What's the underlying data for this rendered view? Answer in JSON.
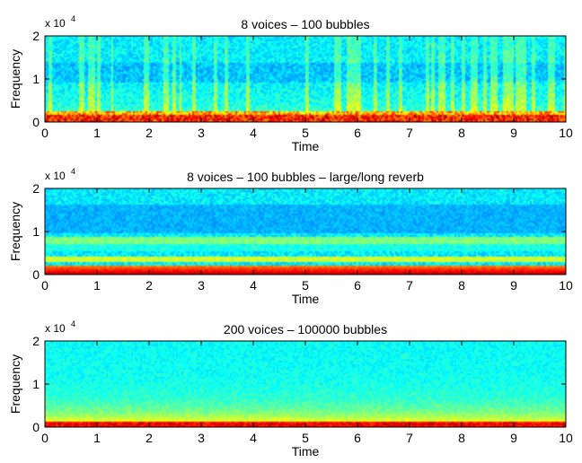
{
  "chart_data": [
    {
      "type": "heatmap",
      "title": "8 voices – 100 bubbles",
      "xlabel": "Time",
      "ylabel": "Frequency",
      "xlim": [
        0,
        10
      ],
      "ylim": [
        0,
        20000
      ],
      "xticks": [
        "0",
        "1",
        "2",
        "3",
        "4",
        "5",
        "6",
        "7",
        "8",
        "9",
        "10"
      ],
      "yticks": [
        "0",
        "1",
        "2"
      ],
      "y_exponent": {
        "base": "x 10",
        "power": "4"
      },
      "colormap": "jet",
      "texture": "transient"
    },
    {
      "type": "heatmap",
      "title": "8 voices – 100 bubbles – large/long reverb",
      "xlabel": "Time",
      "ylabel": "Frequency",
      "xlim": [
        0,
        10
      ],
      "ylim": [
        0,
        20000
      ],
      "xticks": [
        "0",
        "1",
        "2",
        "3",
        "4",
        "5",
        "6",
        "7",
        "8",
        "9",
        "10"
      ],
      "yticks": [
        "0",
        "1",
        "2"
      ],
      "y_exponent": {
        "base": "x 10",
        "power": "4"
      },
      "colormap": "jet",
      "texture": "banded"
    },
    {
      "type": "heatmap",
      "title": "200 voices – 100000 bubbles",
      "xlabel": "Time",
      "ylabel": "Frequency",
      "xlim": [
        0,
        10
      ],
      "ylim": [
        0,
        20000
      ],
      "xticks": [
        "0",
        "1",
        "2",
        "3",
        "4",
        "5",
        "6",
        "7",
        "8",
        "9",
        "10"
      ],
      "yticks": [
        "0",
        "1",
        "2"
      ],
      "y_exponent": {
        "base": "x 10",
        "power": "4"
      },
      "colormap": "jet",
      "texture": "smooth"
    }
  ]
}
